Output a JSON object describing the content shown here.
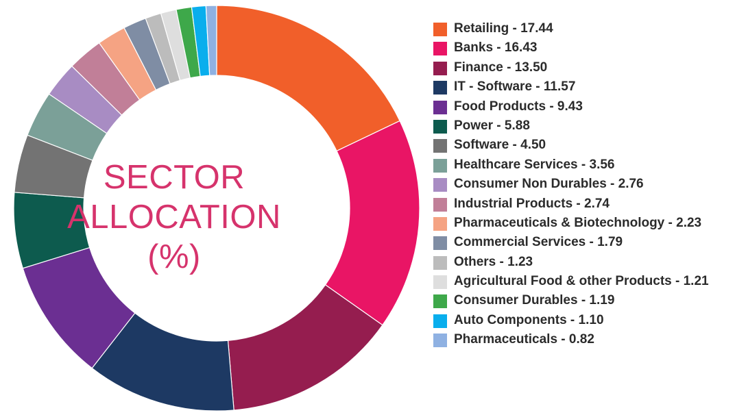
{
  "chart_data": {
    "type": "pie",
    "title_lines": [
      "SECTOR",
      "ALLOCATION",
      "(%)"
    ],
    "series": [
      {
        "name": "Retailing",
        "value": 17.44,
        "color": "#f15f2a"
      },
      {
        "name": "Banks",
        "value": 16.43,
        "color": "#e91565"
      },
      {
        "name": "Finance",
        "value": 13.5,
        "color": "#951d4f"
      },
      {
        "name": "IT - Software",
        "value": 11.57,
        "color": "#1d3963"
      },
      {
        "name": "Food Products",
        "value": 9.43,
        "color": "#6b2f92"
      },
      {
        "name": "Power",
        "value": 5.88,
        "color": "#0d5b4e"
      },
      {
        "name": "Software",
        "value": 4.5,
        "color": "#737373"
      },
      {
        "name": "Healthcare Services",
        "value": 3.56,
        "color": "#7ba098"
      },
      {
        "name": "Consumer Non Durables",
        "value": 2.76,
        "color": "#a88cc3"
      },
      {
        "name": "Industrial Products",
        "value": 2.74,
        "color": "#c17f98"
      },
      {
        "name": "Pharmaceuticals & Biotechnology",
        "value": 2.23,
        "color": "#f5a383"
      },
      {
        "name": "Commercial Services",
        "value": 1.79,
        "color": "#7f8da4"
      },
      {
        "name": "Others",
        "value": 1.23,
        "color": "#bcbcbc"
      },
      {
        "name": "Agricultural Food & other Products",
        "value": 1.21,
        "color": "#dedede"
      },
      {
        "name": "Consumer Durables",
        "value": 1.19,
        "color": "#3ea84a"
      },
      {
        "name": "Auto Components",
        "value": 1.1,
        "color": "#09aeed"
      },
      {
        "name": "Pharmaceuticals",
        "value": 0.82,
        "color": "#8fb1e2"
      }
    ],
    "legend_labels": [
      "Retailing - 17.44",
      "Banks - 16.43",
      "Finance - 13.50",
      "IT - Software - 11.57",
      "Food Products - 9.43",
      "Power - 5.88",
      "Software - 4.50",
      "Healthcare Services - 3.56",
      "Consumer Non Durables - 2.76",
      "Industrial Products - 2.74",
      "Pharmaceuticals & Biotechnology - 2.23",
      "Commercial Services - 1.79",
      "Others - 1.23",
      "Agricultural Food & other Products - 1.21",
      "Consumer Durables - 1.19",
      "Auto Components - 1.10",
      "Pharmaceuticals - 0.82"
    ],
    "legend_position": "right",
    "center_label_color": "#d6336c"
  }
}
